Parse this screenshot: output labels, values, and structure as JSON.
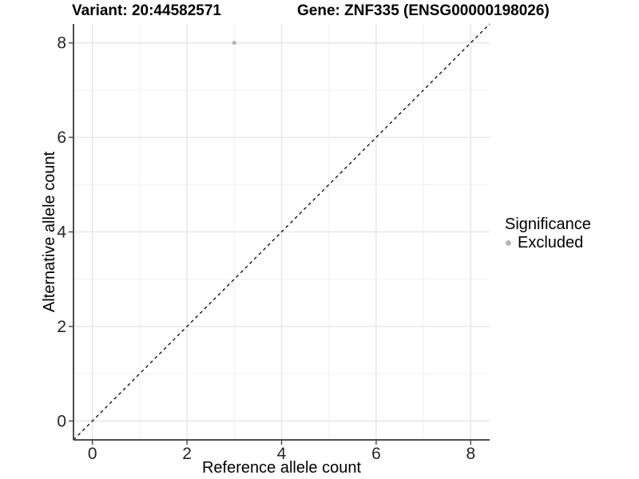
{
  "chart_data": {
    "type": "scatter",
    "title_left": "Variant: 20:44582571",
    "title_right": "Gene: ZNF335 (ENSG00000198026)",
    "xlabel": "Reference allele count",
    "ylabel": "Alternative allele count",
    "xlim": [
      -0.4,
      8.4
    ],
    "ylim": [
      -0.4,
      8.4
    ],
    "xticks": [
      0,
      2,
      4,
      6,
      8
    ],
    "yticks": [
      0,
      2,
      4,
      6,
      8
    ],
    "minor_ticks": [
      1,
      3,
      5,
      7
    ],
    "grid": "major-and-minor",
    "points": [
      {
        "x": 3,
        "y": 8,
        "series": "Excluded"
      }
    ],
    "reference_line": {
      "kind": "identity y=x",
      "style": "dashed",
      "from": [
        -0.4,
        -0.4
      ],
      "to": [
        8.4,
        8.4
      ]
    },
    "legend": {
      "title": "Significance",
      "position": "right",
      "items": [
        {
          "label": "Excluded",
          "color": "#b5b5b5",
          "marker": "circle"
        }
      ]
    },
    "colors": {
      "point": "#b5b5b5",
      "grid_major": "#e4e4e4",
      "grid_minor": "#f0f0f0",
      "axis_line": "#4d4d4d",
      "tick_mark": "#4d4d4d",
      "tick_label": "#262626",
      "dashed_line": "#000000",
      "text": "#000000",
      "background": "#ffffff"
    }
  }
}
